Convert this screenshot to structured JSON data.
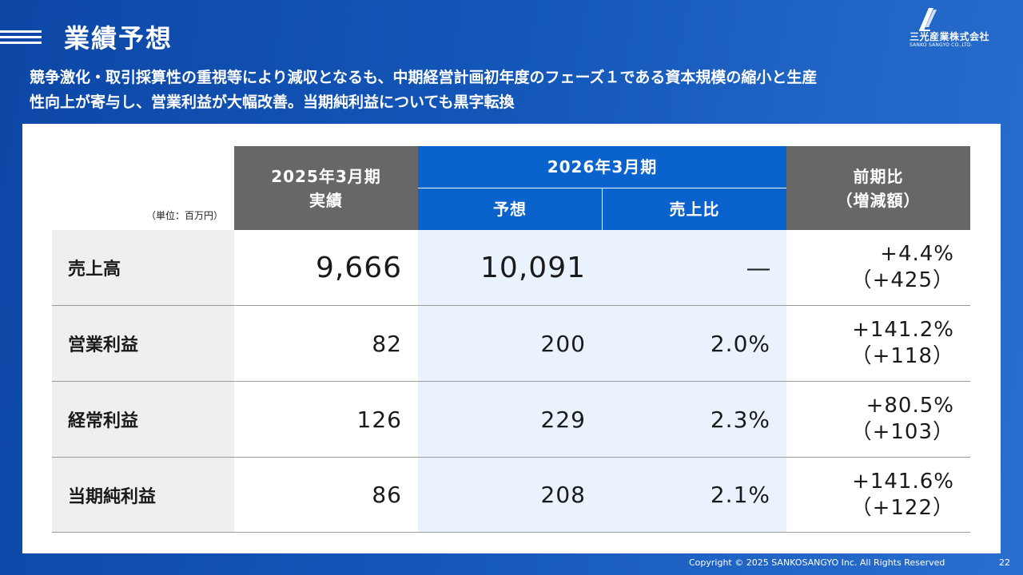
{
  "header": {
    "title": "業績予想",
    "subtitle_line1": "競争激化・取引採算性の重視等により減収となるも、中期経営計画初年度のフェーズ１である資本規模の縮小と生産",
    "subtitle_line2": "性向上が寄与し、営業利益が大幅改善。当期純利益についても黒字転換"
  },
  "logo": {
    "name": "三光産業株式会社",
    "sub": "SANKO SANGYO CO.,LTD."
  },
  "table": {
    "unit": "（単位：百万円）",
    "col_fy2025_line1": "2025年3月期",
    "col_fy2025_line2": "実績",
    "col_fy2026": "2026年3月期",
    "col_forecast": "予想",
    "col_ratio": "売上比",
    "col_change_line1": "前期比",
    "col_change_line2": "（増減額）",
    "rows": [
      {
        "label": "売上高",
        "actual": "9,666",
        "forecast": "10,091",
        "ratio": "―",
        "pct": "+4.4%",
        "amount": "（+425）"
      },
      {
        "label": "営業利益",
        "actual": "82",
        "forecast": "200",
        "ratio": "2.0%",
        "pct": "+141.2%",
        "amount": "（+118）"
      },
      {
        "label": "経常利益",
        "actual": "126",
        "forecast": "229",
        "ratio": "2.3%",
        "pct": "+80.5%",
        "amount": "（+103）"
      },
      {
        "label": "当期純利益",
        "actual": "86",
        "forecast": "208",
        "ratio": "2.1%",
        "pct": "+141.6%",
        "amount": "（+122）"
      }
    ]
  },
  "footer": {
    "copyright": "Copyright © 2025  SANKOSANGYO Inc. All Rights Reserved",
    "page": "22"
  }
}
